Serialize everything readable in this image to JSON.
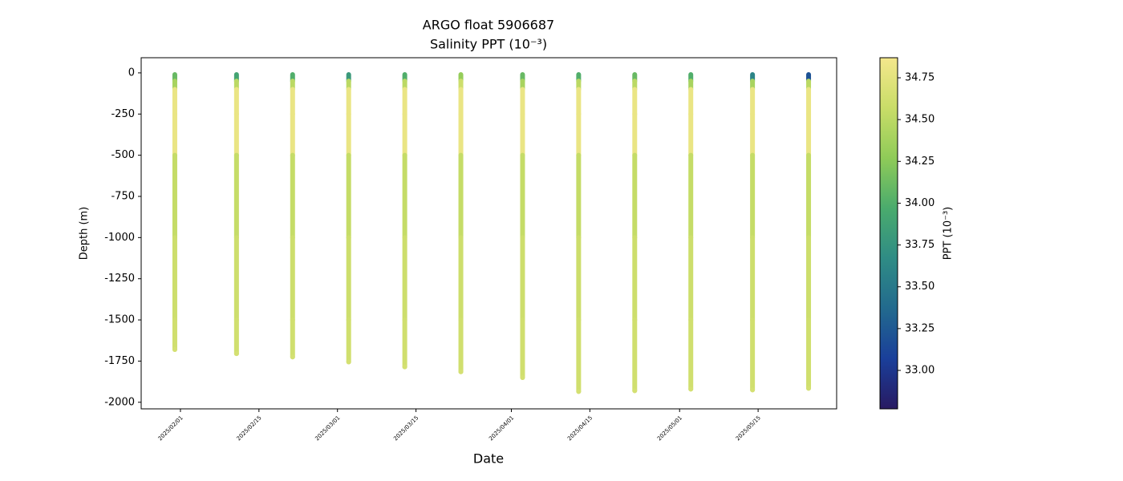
{
  "chart_data": {
    "type": "profiles",
    "title": "ARGO float 5906687",
    "subtitle": "Salinity PPT (10⁻³)",
    "x_label": "Date",
    "y_label": "Depth (m)",
    "colorbar_label": "PPT (10⁻³)",
    "xlim": [
      "2025-01-25",
      "2025-05-29"
    ],
    "xticks": [
      {
        "value": "2025-02-01",
        "label": "2025/02/01"
      },
      {
        "value": "2025-02-15",
        "label": "2025/02/15"
      },
      {
        "value": "2025-03-01",
        "label": "2025/03/01"
      },
      {
        "value": "2025-03-15",
        "label": "2025/03/15"
      },
      {
        "value": "2025-04-01",
        "label": "2025/04/01"
      },
      {
        "value": "2025-04-15",
        "label": "2025/04/15"
      },
      {
        "value": "2025-05-01",
        "label": "2025/05/01"
      },
      {
        "value": "2025-05-15",
        "label": "2025/05/15"
      }
    ],
    "ylim": [
      -2040,
      92
    ],
    "yticks": [
      0,
      -250,
      -500,
      -750,
      -1000,
      -1250,
      -1500,
      -1750,
      -2000
    ],
    "clim": [
      32.77,
      34.87
    ],
    "cticks": [
      {
        "value": 33,
        "label": "33.00"
      },
      {
        "value": 33.25,
        "label": "33.25"
      },
      {
        "value": 33.5,
        "label": "33.50"
      },
      {
        "value": 33.75,
        "label": "33.75"
      },
      {
        "value": 34,
        "label": "34.00"
      },
      {
        "value": 34.25,
        "label": "34.25"
      },
      {
        "value": 34.5,
        "label": "34.50"
      },
      {
        "value": 34.75,
        "label": "34.75"
      }
    ],
    "colormap": [
      "#281a62",
      "#1a3f9a",
      "#226a8e",
      "#2f8c85",
      "#4aab6d",
      "#8fcb58",
      "#c9dd68",
      "#f4e78c"
    ],
    "profiles": [
      {
        "x": "2025-01-31",
        "depth": [
          -10,
          -50,
          -100,
          -250,
          -500,
          -1000,
          -1500,
          -1680
        ],
        "values": [
          34.1,
          34.4,
          34.8,
          34.8,
          34.55,
          34.6,
          34.62,
          34.65
        ]
      },
      {
        "x": "2025-02-11",
        "depth": [
          -10,
          -50,
          -100,
          -250,
          -500,
          -1000,
          -1500,
          -1705
        ],
        "values": [
          33.9,
          34.5,
          34.8,
          34.8,
          34.55,
          34.6,
          34.62,
          34.65
        ]
      },
      {
        "x": "2025-02-21",
        "depth": [
          -10,
          -50,
          -100,
          -250,
          -500,
          -1000,
          -1500,
          -1725
        ],
        "values": [
          34.0,
          34.5,
          34.8,
          34.8,
          34.55,
          34.6,
          34.62,
          34.65
        ]
      },
      {
        "x": "2025-03-03",
        "depth": [
          -10,
          -50,
          -100,
          -250,
          -500,
          -1000,
          -1500,
          -1755
        ],
        "values": [
          33.8,
          34.5,
          34.8,
          34.8,
          34.55,
          34.6,
          34.62,
          34.65
        ]
      },
      {
        "x": "2025-03-13",
        "depth": [
          -10,
          -50,
          -100,
          -250,
          -500,
          -1000,
          -1500,
          -1785
        ],
        "values": [
          34.0,
          34.5,
          34.8,
          34.8,
          34.55,
          34.6,
          34.62,
          34.65
        ]
      },
      {
        "x": "2025-03-23",
        "depth": [
          -10,
          -50,
          -100,
          -250,
          -500,
          -1000,
          -1500,
          -1815
        ],
        "values": [
          34.3,
          34.6,
          34.8,
          34.8,
          34.55,
          34.6,
          34.62,
          34.65
        ]
      },
      {
        "x": "2025-04-03",
        "depth": [
          -10,
          -50,
          -100,
          -250,
          -500,
          -1000,
          -1500,
          -1850
        ],
        "values": [
          34.1,
          34.4,
          34.8,
          34.8,
          34.55,
          34.6,
          34.62,
          34.65
        ]
      },
      {
        "x": "2025-04-13",
        "depth": [
          -10,
          -50,
          -100,
          -250,
          -500,
          -1000,
          -1500,
          -1935
        ],
        "values": [
          34.0,
          34.5,
          34.8,
          34.8,
          34.55,
          34.6,
          34.62,
          34.65
        ]
      },
      {
        "x": "2025-04-23",
        "depth": [
          -10,
          -50,
          -100,
          -250,
          -500,
          -1000,
          -1500,
          -1930
        ],
        "values": [
          34.1,
          34.5,
          34.8,
          34.8,
          34.55,
          34.6,
          34.62,
          34.65
        ]
      },
      {
        "x": "2025-05-03",
        "depth": [
          -10,
          -50,
          -100,
          -250,
          -500,
          -1000,
          -1500,
          -1920
        ],
        "values": [
          34.0,
          34.4,
          34.8,
          34.8,
          34.55,
          34.6,
          34.62,
          34.65
        ]
      },
      {
        "x": "2025-05-14",
        "depth": [
          -10,
          -50,
          -100,
          -250,
          -500,
          -1000,
          -1500,
          -1925
        ],
        "values": [
          33.6,
          34.4,
          34.8,
          34.8,
          34.55,
          34.6,
          34.62,
          34.65
        ]
      },
      {
        "x": "2025-05-24",
        "depth": [
          -10,
          -50,
          -100,
          -250,
          -500,
          -1000,
          -1500,
          -1915
        ],
        "values": [
          33.2,
          34.5,
          34.8,
          34.8,
          34.55,
          34.6,
          34.62,
          34.65
        ]
      }
    ]
  }
}
